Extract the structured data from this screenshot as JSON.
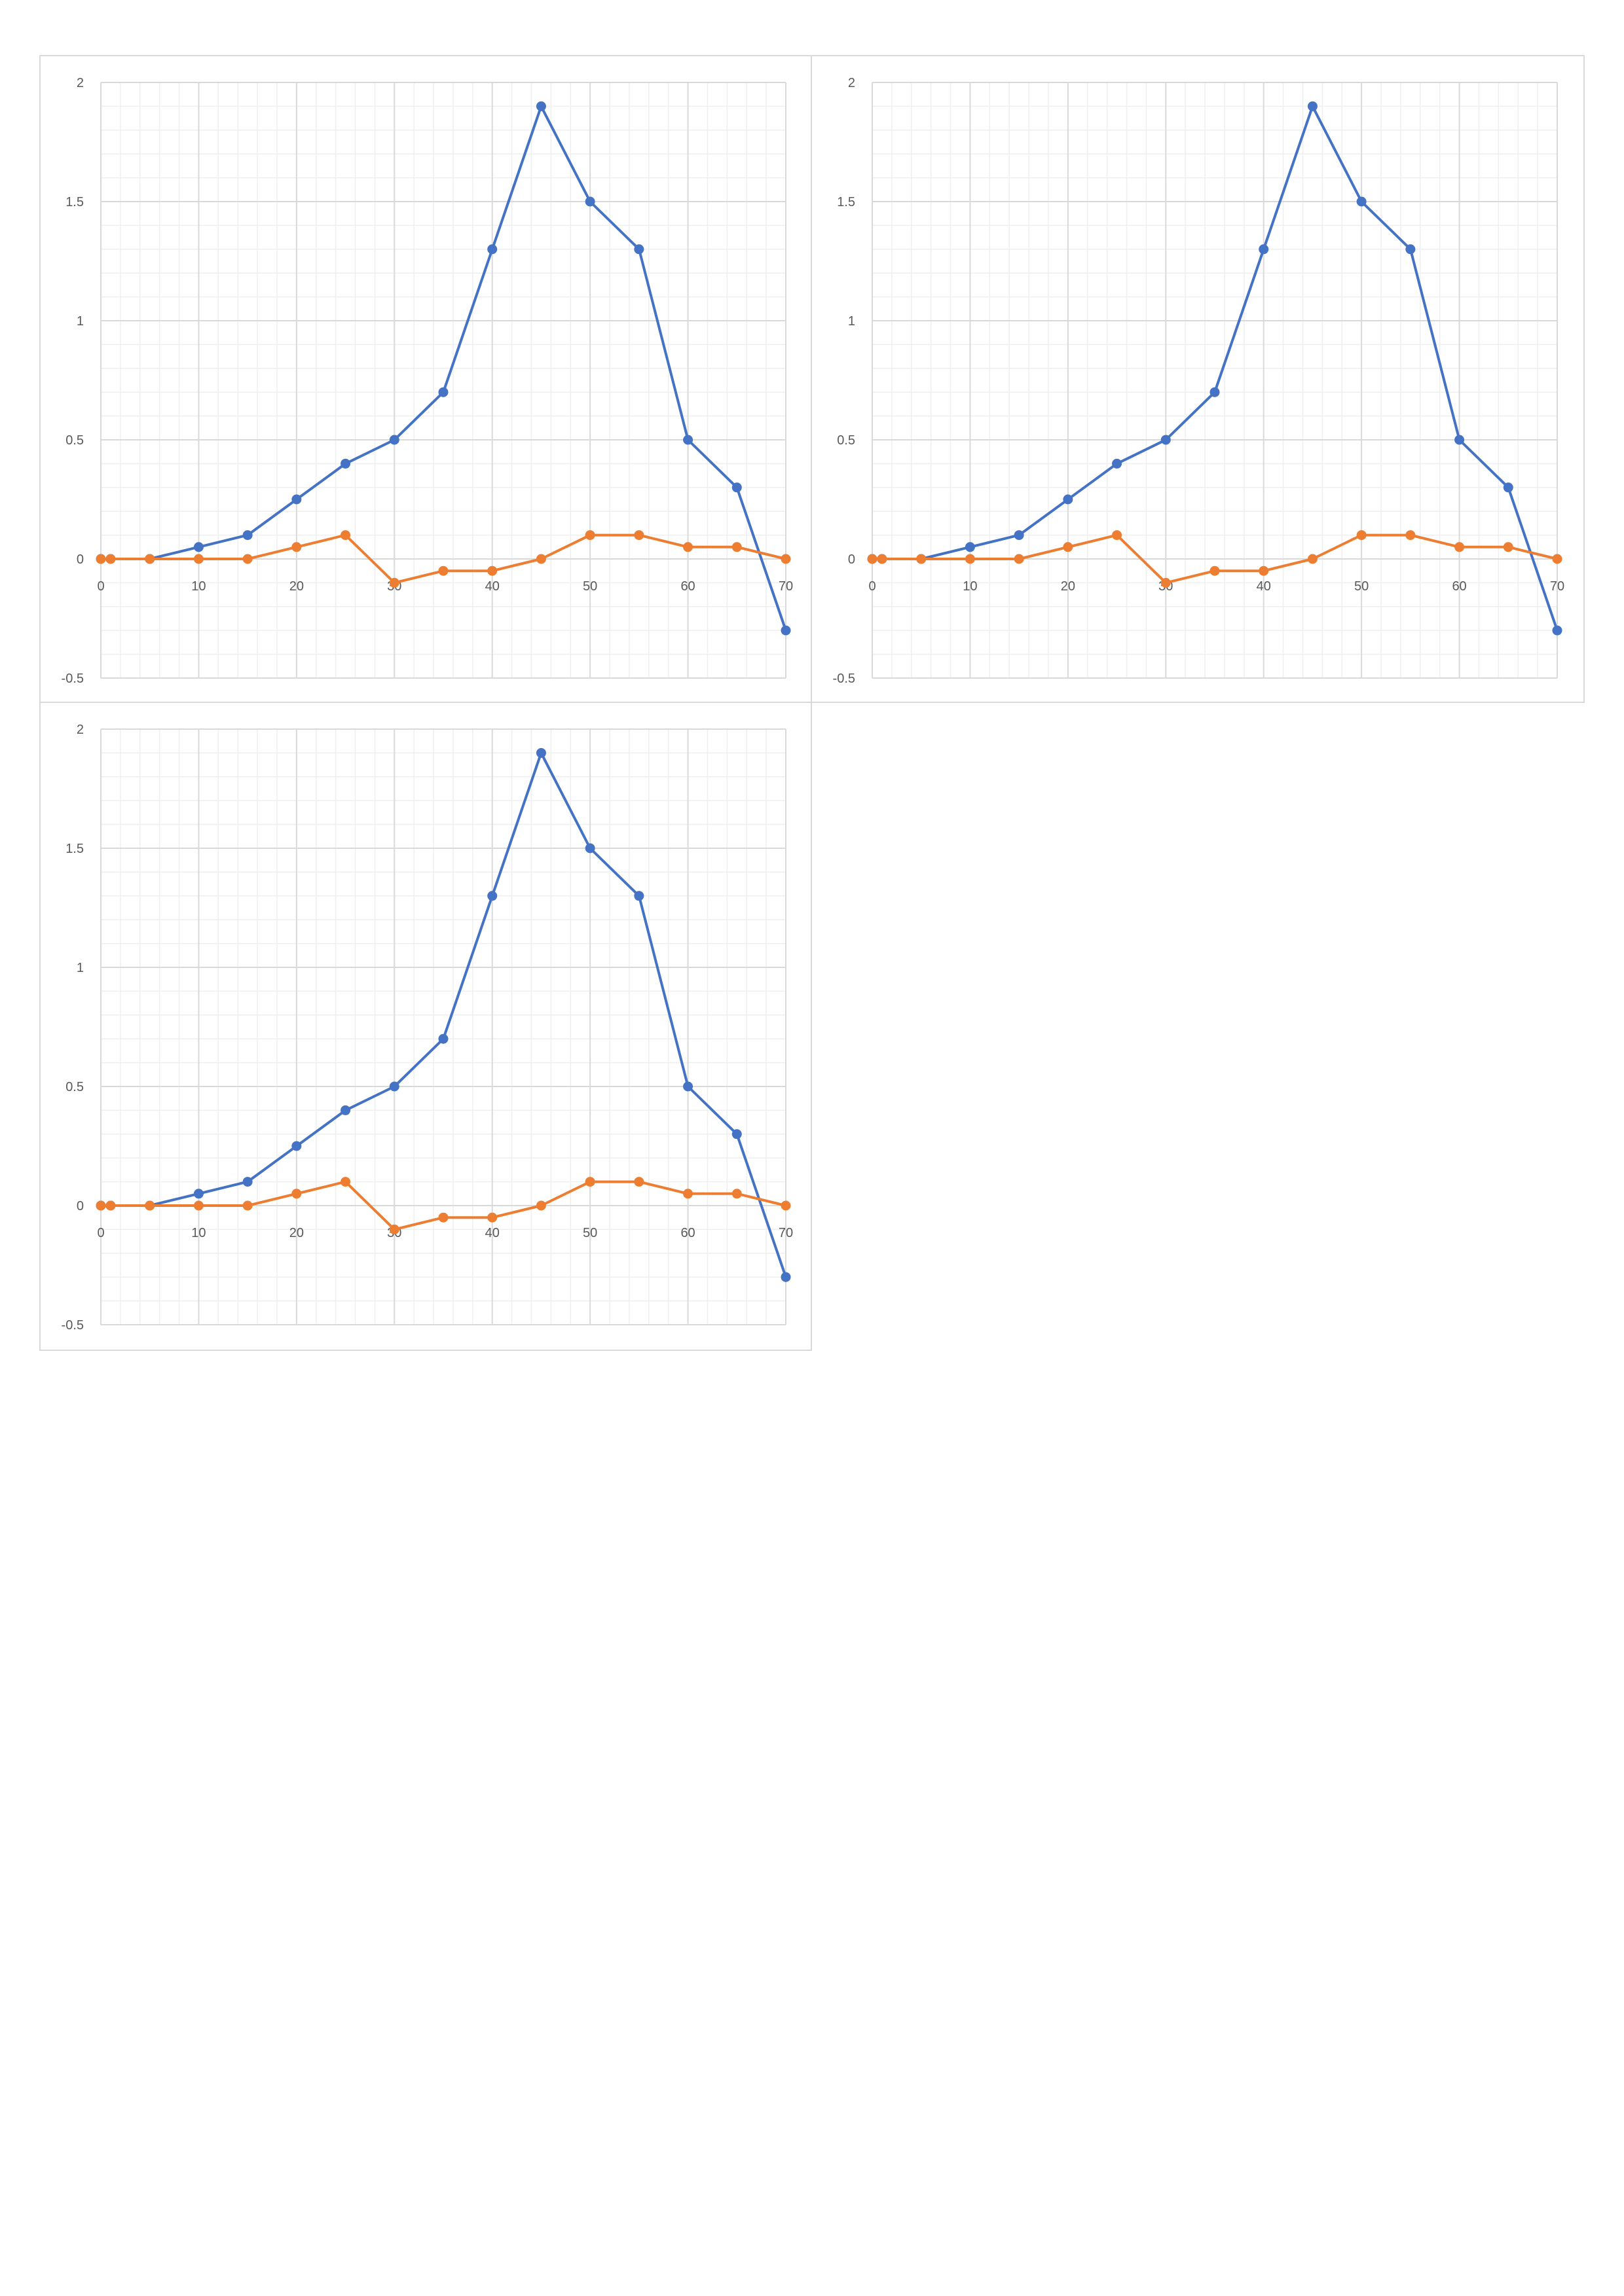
{
  "colors": {
    "series_1": "#4472c4",
    "series_2": "#ed7d31",
    "grid_major": "#d9d9d9",
    "grid_minor": "#efefef",
    "tick_text": "#595959"
  },
  "chart_data": [
    {
      "type": "scatter",
      "line_style": "straight lines with markers",
      "xlim": [
        0,
        70
      ],
      "ylim": [
        -0.5,
        2
      ],
      "x_ticks": [
        "0",
        "10",
        "20",
        "30",
        "40",
        "50",
        "60",
        "70"
      ],
      "y_ticks": [
        "2",
        "1.5",
        "1",
        "0.5",
        "0",
        "-0.5"
      ],
      "grid": true,
      "legend": "none",
      "series": [
        {
          "color": "#4472c4",
          "x": [
            0,
            1,
            5,
            10,
            15,
            20,
            25,
            30,
            35,
            40,
            45,
            50,
            55,
            60,
            65,
            70
          ],
          "y": [
            0,
            0,
            0,
            0.05,
            0.1,
            0.25,
            0.4,
            0.5,
            0.7,
            1.3,
            1.9,
            1.5,
            1.3,
            0.5,
            0.3,
            -0.3
          ]
        },
        {
          "color": "#ed7d31",
          "x": [
            0,
            1,
            5,
            10,
            15,
            20,
            25,
            30,
            35,
            40,
            45,
            50,
            55,
            60,
            65,
            70
          ],
          "y": [
            0,
            0,
            0,
            0,
            0,
            0.05,
            0.1,
            -0.1,
            -0.05,
            -0.05,
            0,
            0.1,
            0.1,
            0.05,
            0.05,
            0
          ]
        }
      ]
    },
    {
      "type": "scatter",
      "line_style": "straight lines with markers",
      "xlim": [
        0,
        70
      ],
      "ylim": [
        -0.5,
        2
      ],
      "x_ticks": [
        "0",
        "10",
        "20",
        "30",
        "40",
        "50",
        "60",
        "70"
      ],
      "y_ticks": [
        "2",
        "1.5",
        "1",
        "0.5",
        "0",
        "-0.5"
      ],
      "grid": true,
      "legend": "none",
      "series": [
        {
          "color": "#4472c4",
          "x": [
            0,
            1,
            5,
            10,
            15,
            20,
            25,
            30,
            35,
            40,
            45,
            50,
            55,
            60,
            65,
            70
          ],
          "y": [
            0,
            0,
            0,
            0.05,
            0.1,
            0.25,
            0.4,
            0.5,
            0.7,
            1.3,
            1.9,
            1.5,
            1.3,
            0.5,
            0.3,
            -0.3
          ]
        },
        {
          "color": "#ed7d31",
          "x": [
            0,
            1,
            5,
            10,
            15,
            20,
            25,
            30,
            35,
            40,
            45,
            50,
            55,
            60,
            65,
            70
          ],
          "y": [
            0,
            0,
            0,
            0,
            0,
            0.05,
            0.1,
            -0.1,
            -0.05,
            -0.05,
            0,
            0.1,
            0.1,
            0.05,
            0.05,
            0
          ]
        }
      ]
    },
    {
      "type": "scatter",
      "line_style": "straight lines with markers",
      "xlim": [
        0,
        70
      ],
      "ylim": [
        -0.5,
        2
      ],
      "x_ticks": [
        "0",
        "10",
        "20",
        "30",
        "40",
        "50",
        "60",
        "70"
      ],
      "y_ticks": [
        "2",
        "1.5",
        "1",
        "0.5",
        "0",
        "-0.5"
      ],
      "grid": true,
      "legend": "none",
      "series": [
        {
          "color": "#4472c4",
          "x": [
            0,
            1,
            5,
            10,
            15,
            20,
            25,
            30,
            35,
            40,
            45,
            50,
            55,
            60,
            65,
            70
          ],
          "y": [
            0,
            0,
            0,
            0.05,
            0.1,
            0.25,
            0.4,
            0.5,
            0.7,
            1.3,
            1.9,
            1.5,
            1.3,
            0.5,
            0.3,
            -0.3
          ]
        },
        {
          "color": "#ed7d31",
          "x": [
            0,
            1,
            5,
            10,
            15,
            20,
            25,
            30,
            35,
            40,
            45,
            50,
            55,
            60,
            65,
            70
          ],
          "y": [
            0,
            0,
            0,
            0,
            0,
            0.05,
            0.1,
            -0.1,
            -0.05,
            -0.05,
            0,
            0.1,
            0.1,
            0.05,
            0.05,
            0
          ]
        }
      ]
    }
  ]
}
